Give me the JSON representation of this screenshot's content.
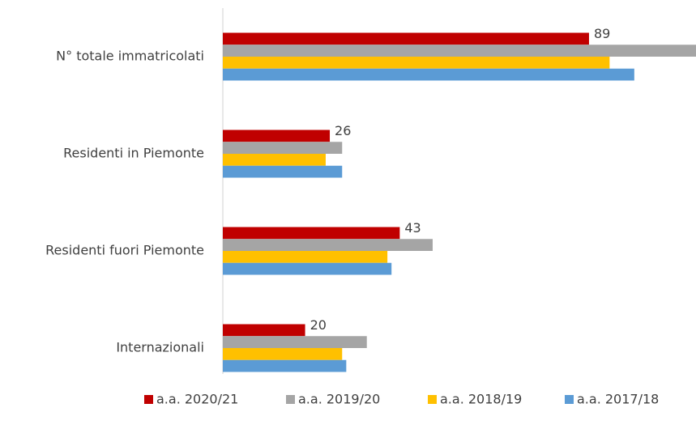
{
  "chart_data": {
    "type": "hbar",
    "categories": [
      "N° totale immatricolati",
      "Residenti in Piemonte",
      "Residenti fuori Piemonte",
      "Internazionali"
    ],
    "series": [
      {
        "name": "a.a. 2020/21",
        "color": "#c00000",
        "values": [
          89,
          26,
          43,
          20
        ],
        "data_labels": true
      },
      {
        "name": "a.a. 2019/20",
        "color": "#a5a5a5",
        "values": [
          115,
          29,
          51,
          35
        ]
      },
      {
        "name": "a.a. 2018/19",
        "color": "#ffc000",
        "values": [
          94,
          25,
          40,
          29
        ]
      },
      {
        "name": "a.a. 2017/18",
        "color": "#5b9bd5",
        "values": [
          100,
          29,
          41,
          30
        ]
      }
    ],
    "xlim": [
      0,
      115
    ],
    "legend": "bottom"
  }
}
